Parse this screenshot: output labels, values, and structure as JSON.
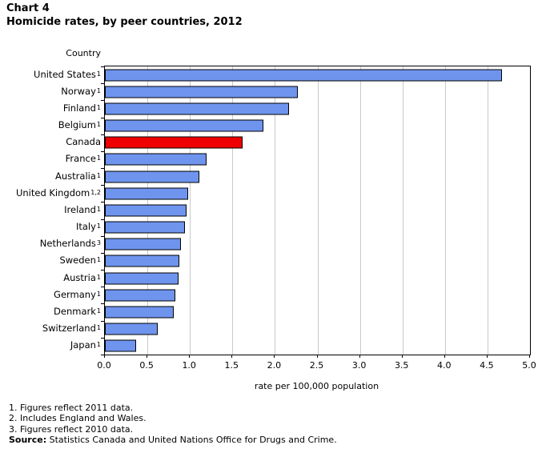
{
  "title": {
    "line1": "Chart 4",
    "line2": "Homicide rates, by peer countries, 2012"
  },
  "chart_data": {
    "type": "bar",
    "orientation": "horizontal",
    "title": "Homicide rates, by peer countries, 2012",
    "y_axis_title": "Country",
    "xlabel": "rate per 100,000 population",
    "xlim": [
      0,
      5
    ],
    "grid": true,
    "x_tick_labels": [
      "0.0",
      "0.5",
      "1.0",
      "1.5",
      "2.0",
      "2.5",
      "3.0",
      "3.5",
      "4.0",
      "4.5",
      "5.0"
    ],
    "categories": [
      {
        "label": "United States",
        "sup": "1"
      },
      {
        "label": "Norway",
        "sup": "1"
      },
      {
        "label": "Finland",
        "sup": "1"
      },
      {
        "label": "Belgium",
        "sup": "1"
      },
      {
        "label": "Canada",
        "sup": ""
      },
      {
        "label": "France",
        "sup": "1"
      },
      {
        "label": "Australia",
        "sup": "1"
      },
      {
        "label": "United Kingdom",
        "sup": "1,2"
      },
      {
        "label": "Ireland",
        "sup": "1"
      },
      {
        "label": "Italy",
        "sup": "1"
      },
      {
        "label": "Netherlands",
        "sup": "3"
      },
      {
        "label": "Sweden",
        "sup": "1"
      },
      {
        "label": "Austria",
        "sup": "1"
      },
      {
        "label": "Germany",
        "sup": "1"
      },
      {
        "label": "Denmark",
        "sup": "1"
      },
      {
        "label": "Switzerland",
        "sup": "1"
      },
      {
        "label": "Japan",
        "sup": "1"
      }
    ],
    "values": [
      4.65,
      2.25,
      2.15,
      1.85,
      1.6,
      1.18,
      1.09,
      0.96,
      0.94,
      0.92,
      0.88,
      0.86,
      0.85,
      0.81,
      0.79,
      0.6,
      0.35
    ],
    "bar_color": "#6e94ee",
    "bar_border_color": "#000000",
    "gridline_color": "#c9c9c9",
    "highlight": {
      "category": "Canada",
      "color": "#ee0000"
    }
  },
  "footnotes": [
    "1. Figures reflect 2011 data.",
    "2. Includes England and Wales.",
    "3. Figures reflect 2010 data."
  ],
  "source": {
    "label": "Source:",
    "text": " Statistics Canada and United Nations Office for Drugs and Crime."
  }
}
